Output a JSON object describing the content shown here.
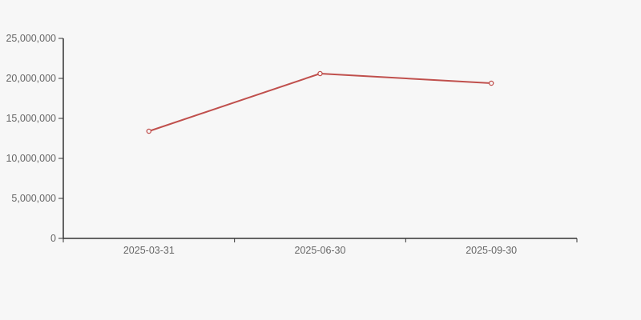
{
  "chart_data": {
    "type": "line",
    "categories": [
      "2025-03-31",
      "2025-06-30",
      "2025-09-30"
    ],
    "series": [
      {
        "name": "series-1",
        "values": [
          13400000,
          20600000,
          19400000
        ]
      }
    ],
    "title": "",
    "xlabel": "",
    "ylabel": "",
    "ylim": [
      0,
      25000000
    ],
    "y_ticks": [
      0,
      5000000,
      10000000,
      15000000,
      20000000,
      25000000
    ],
    "y_tick_labels": [
      "0",
      "5,000,000",
      "10,000,000",
      "15,000,000",
      "20,000,000",
      "25,000,000"
    ],
    "grid": false,
    "legend_position": "none",
    "marker_style": "hollow-circle",
    "colors": {
      "line": "#c0504d",
      "marker_fill": "#f7f7f7",
      "axis": "#333333",
      "tick_label": "#666666",
      "background": "#f7f7f7"
    }
  }
}
